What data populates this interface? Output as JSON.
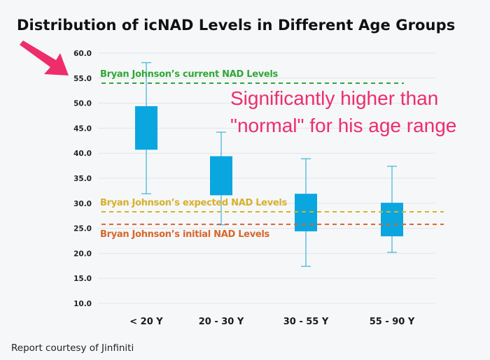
{
  "chart_data": {
    "type": "box",
    "title": "Distribution of icNAD Levels in Different Age Groups",
    "xlabel": "",
    "ylabel": "",
    "ylim": [
      10,
      60
    ],
    "yticks": [
      10,
      15,
      20,
      25,
      30,
      35,
      40,
      45,
      50,
      55,
      60
    ],
    "ytick_labels": [
      "10.0",
      "15.0",
      "20.0",
      "25.0",
      "30.0",
      "35.0",
      "40.0",
      "45.0",
      "50.0",
      "55.0",
      "60.0"
    ],
    "grid": true,
    "categories": [
      "< 20 Y",
      "20 - 30 Y",
      "30 - 55 Y",
      "55 - 90 Y"
    ],
    "boxes": [
      {
        "category": "< 20 Y",
        "whisker_low": 31.9,
        "q1": 40.7,
        "q3": 49.4,
        "whisker_high": 58.1
      },
      {
        "category": "20 - 30 Y",
        "whisker_low": 25.7,
        "q1": 31.6,
        "q3": 39.4,
        "whisker_high": 44.2
      },
      {
        "category": "30 - 55 Y",
        "whisker_low": 17.4,
        "q1": 24.4,
        "q3": 31.9,
        "whisker_high": 38.9
      },
      {
        "category": "55 - 90 Y",
        "whisker_low": 20.2,
        "q1": 23.4,
        "q3": 30.1,
        "whisker_high": 37.4
      }
    ],
    "box_color": "#0aa6e0",
    "whisker_color": "#4cb8d8",
    "reference_lines": [
      {
        "label": "Bryan Johnson’s current NAD Levels",
        "value": 54.0,
        "color": "#2ea836",
        "label_position": "above"
      },
      {
        "label": "Bryan Johnson’s expected NAD Levels",
        "value": 28.3,
        "color": "#d6b22a",
        "label_position": "above"
      },
      {
        "label": "Bryan Johnson’s initial NAD Levels",
        "value": 25.8,
        "color": "#d7672a",
        "label_position": "below"
      }
    ]
  },
  "annotation": {
    "lines": [
      "Significantly higher than",
      "\"normal\" for his age range"
    ],
    "color": "#ee2d6a",
    "arrow_icon": "arrow-pointing-to-55",
    "arrow_color": "#ee2d6a"
  },
  "footer": {
    "credit": "Report courtesy of Jinfiniti"
  }
}
